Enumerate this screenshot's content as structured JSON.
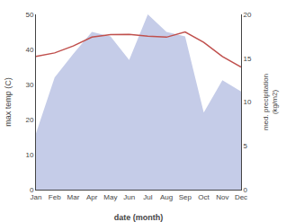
{
  "chart_data": {
    "type": "line",
    "xlabel": "date (month)",
    "ylabel": "max temp (C)",
    "y2label": "med. precipitation\n(kg/m2)",
    "categories": [
      "Jan",
      "Feb",
      "Mar",
      "Apr",
      "May",
      "Jun",
      "Jul",
      "Aug",
      "Sep",
      "Oct",
      "Nov",
      "Dec"
    ],
    "series": [
      {
        "type": "area",
        "axis": "y2",
        "color": "#c5cce8",
        "values": [
          6.4,
          12.8,
          15.5,
          18.0,
          17.5,
          14.8,
          20.0,
          18.0,
          17.5,
          8.8,
          12.5,
          11.2
        ]
      },
      {
        "type": "line",
        "color": "#c0504d",
        "values": [
          38,
          39,
          41,
          43.5,
          44.2,
          44.3,
          43.8,
          43.5,
          45,
          42,
          38,
          35
        ]
      }
    ],
    "ylim": [
      0,
      50
    ],
    "yticks": [
      0,
      10,
      20,
      30,
      40,
      50
    ],
    "y2lim": [
      0,
      20
    ],
    "y2ticks": [
      0,
      5,
      10,
      15,
      20
    ],
    "grid": false
  }
}
